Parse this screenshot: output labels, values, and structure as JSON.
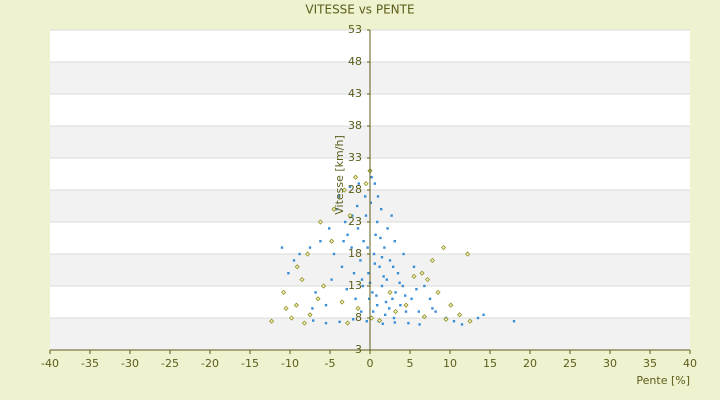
{
  "chart_data": {
    "type": "scatter",
    "title": "VITESSE vs PENTE",
    "x_label": "Pente [%]",
    "y_label": "Vitesse [km/h]",
    "xlim": [
      -40,
      40
    ],
    "xticks": [
      -40,
      -35,
      -30,
      -25,
      -20,
      -15,
      -10,
      -5,
      0,
      5,
      10,
      15,
      20,
      25,
      30,
      35,
      40
    ],
    "ylim": [
      3,
      53
    ],
    "yticks": [
      3,
      8,
      13,
      18,
      23,
      28,
      33,
      38,
      43,
      48,
      53
    ],
    "grid": true,
    "series": [
      {
        "color": "#3a8ed8",
        "x": [
          0.5,
          1.2,
          -0.8,
          2.1,
          0.3,
          -1.5,
          1.8,
          3.2,
          -0.2,
          0.9,
          2.5,
          -2.3,
          1.5,
          -0.5,
          0.1,
          3.8,
          4.5,
          2.8,
          -3.1,
          -1.2,
          0.7,
          1.9,
          -0.9,
          2.2,
          3.5,
          -4.2,
          -2.8,
          0.4,
          1.1,
          -1.8,
          5.2,
          6.1,
          4.1,
          -5.1,
          -6.2,
          -3.5,
          -7.5,
          -8.8,
          -9.5,
          -11,
          -10.2,
          -6.8,
          -5.5,
          -7.2,
          -4.8,
          -3.9,
          -2.5,
          -1.4,
          0.2,
          -0.6,
          1.4,
          2.7,
          3.1,
          4.2,
          5.5,
          6.8,
          7.5,
          8.2,
          9.5,
          10.5,
          11.5,
          13.5,
          14.2,
          18,
          6.2,
          4.8,
          3.1,
          1.6,
          -0.4,
          -2.1,
          -3.8,
          -5.5,
          -7.1,
          0.8,
          1.7,
          2.4,
          -1.1,
          0.0,
          0.6,
          -0.3,
          1.3,
          2.9,
          3.7,
          -2.0,
          -2.9,
          -1.6,
          0.9,
          -0.1,
          2.0,
          4.4,
          5.8,
          -4.5,
          -3.3,
          -2.2,
          1.0,
          0.6,
          -1.0,
          1.5,
          3.0,
          7.8
        ],
        "values": [
          18,
          16,
          20,
          14,
          12,
          22,
          19,
          12,
          15,
          10,
          17,
          19,
          13,
          24,
          26,
          10,
          9,
          11,
          23,
          17,
          21,
          8.5,
          13,
          22,
          15,
          25,
          21,
          9,
          7.5,
          11,
          11,
          9,
          13,
          22,
          20,
          16,
          19,
          18,
          17,
          19,
          15,
          12,
          10,
          9.5,
          14,
          27,
          28.5,
          29,
          30,
          27,
          25,
          24,
          20,
          18,
          16,
          13,
          11,
          9,
          8,
          7.5,
          7,
          8,
          8.5,
          7.5,
          7,
          7.2,
          7.3,
          7.1,
          7.5,
          7.8,
          7.4,
          7.2,
          7.6,
          11.5,
          14.5,
          9.5,
          9,
          13.5,
          16.5,
          19,
          20.5,
          16,
          13.5,
          15,
          12.5,
          25.5,
          23,
          11,
          10.5,
          11.5,
          12.5,
          18,
          20,
          24,
          27,
          29,
          14,
          17.5,
          8,
          9.5
        ]
      },
      {
        "color": "#8f8f1f",
        "x": [
          -12.3,
          -9.8,
          -10.5,
          -8.2,
          -7.5,
          -6.5,
          -5.8,
          -9.2,
          -10.8,
          -8.5,
          -4.5,
          -3.2,
          -1.8,
          -0.5,
          0.0,
          -2.5,
          -4.8,
          -6.2,
          -7.8,
          -9.1,
          6.5,
          7.8,
          9.2,
          12.2,
          8.5,
          10.1,
          11.2,
          12.5,
          9.5,
          6.8,
          4.5,
          3.2,
          1.2,
          0.2,
          -1.5,
          7.2,
          5.5,
          2.5,
          -3.5,
          -2.8
        ],
        "values": [
          7.5,
          8,
          9.5,
          7.2,
          8.5,
          11,
          13,
          10,
          12,
          14,
          25,
          28,
          30,
          29,
          31,
          24,
          20,
          23,
          18,
          16,
          15,
          17,
          19,
          18,
          12,
          10,
          8.5,
          7.5,
          7.8,
          8.2,
          10,
          9,
          7.6,
          8,
          9.5,
          14,
          14.5,
          12,
          10.5,
          7.2
        ]
      }
    ]
  }
}
